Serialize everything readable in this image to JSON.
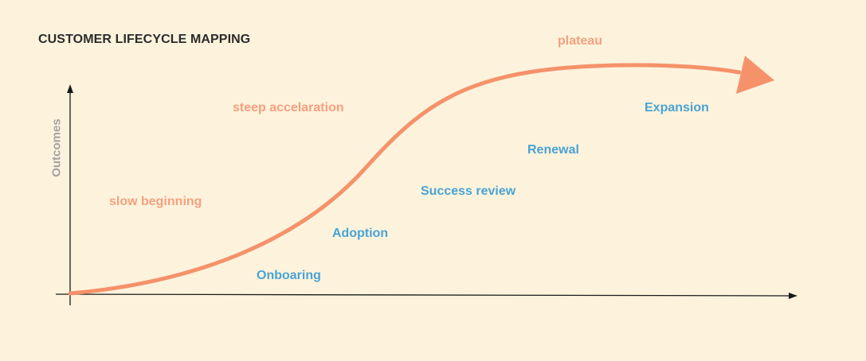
{
  "title": "CUSTOMER LIFECYCLE MAPPING",
  "y_axis_label": "Outcomes",
  "phases": {
    "slow": "slow beginning",
    "steep": "steep accelaration",
    "plateau": "plateau"
  },
  "stages": [
    "Onboaring",
    "Adoption",
    "Success review",
    "Renewal",
    "Expansion"
  ],
  "colors": {
    "background": "#fdf3dd",
    "curve": "#f5926a",
    "phase_text": "#f5a07f",
    "stage_text": "#4aa3d3",
    "axis": "#1a1a1a",
    "title": "#2b2b2b"
  }
}
